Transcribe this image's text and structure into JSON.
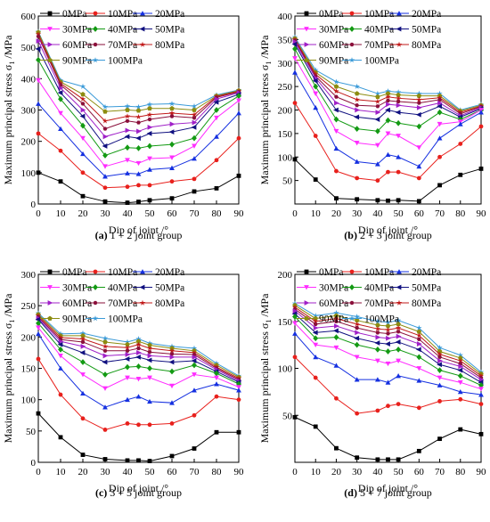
{
  "figure": {
    "caption_labels": [
      "(a)",
      "(b)",
      "(c)",
      "(d)"
    ]
  },
  "series_legend": [
    "0MPa",
    "10MPa",
    "20MPa",
    "30MPa",
    "40MPa",
    "50MPa",
    "60MPa",
    "70MPa",
    "80MPa",
    "90MPa",
    "100MPa"
  ],
  "colors": {
    "series": [
      "#000000",
      "#e8201c",
      "#1530e0",
      "#ff2cff",
      "#139a13",
      "#101080",
      "#a020c8",
      "#8a0f3a",
      "#c01818",
      "#8c8c10",
      "#3a9ad8"
    ]
  },
  "markers": [
    "square",
    "circle",
    "triangle-up",
    "triangle-down",
    "diamond",
    "triangle-left",
    "triangle-right",
    "hexagon",
    "star",
    "pentagon",
    "star"
  ],
  "chart_data": [
    {
      "type": "line",
      "caption_label": "(a)",
      "caption_text": "1 + 2 joint group",
      "xlabel": "Dip of joint /°",
      "ylabel": "Maximum principal stress σ1 /MPa",
      "xlim": [
        0,
        90
      ],
      "ylim": [
        0,
        600
      ],
      "xticks": [
        0,
        10,
        20,
        30,
        40,
        50,
        60,
        70,
        80,
        90
      ],
      "yticks": [
        0,
        100,
        200,
        300,
        400,
        500,
        600
      ],
      "x": [
        0,
        10,
        20,
        30,
        40,
        45,
        50,
        60,
        70,
        80,
        90
      ],
      "series": [
        {
          "name": "0MPa",
          "values": [
            100,
            72,
            25,
            8,
            4,
            7,
            12,
            18,
            40,
            50,
            90
          ]
        },
        {
          "name": "10MPa",
          "values": [
            225,
            170,
            100,
            52,
            55,
            60,
            60,
            72,
            80,
            140,
            210
          ]
        },
        {
          "name": "20MPa",
          "values": [
            320,
            240,
            160,
            88,
            98,
            96,
            110,
            115,
            145,
            215,
            290
          ]
        },
        {
          "name": "30MPa",
          "values": [
            395,
            290,
            210,
            120,
            140,
            130,
            145,
            148,
            185,
            275,
            330
          ]
        },
        {
          "name": "40MPa",
          "values": [
            460,
            335,
            250,
            155,
            180,
            178,
            185,
            190,
            210,
            300,
            345
          ]
        },
        {
          "name": "50MPa",
          "values": [
            495,
            355,
            280,
            185,
            215,
            210,
            225,
            230,
            245,
            325,
            350
          ]
        },
        {
          "name": "60MPa",
          "values": [
            520,
            370,
            300,
            215,
            235,
            232,
            245,
            255,
            260,
            335,
            355
          ]
        },
        {
          "name": "70MPa",
          "values": [
            535,
            380,
            320,
            240,
            265,
            260,
            270,
            280,
            275,
            340,
            358
          ]
        },
        {
          "name": "80MPa",
          "values": [
            542,
            385,
            335,
            265,
            280,
            278,
            285,
            290,
            285,
            343,
            360
          ]
        },
        {
          "name": "90MPa",
          "values": [
            548,
            390,
            350,
            295,
            300,
            298,
            305,
            305,
            300,
            345,
            362
          ]
        },
        {
          "name": "100MPa",
          "values": [
            550,
            395,
            375,
            310,
            312,
            310,
            318,
            320,
            312,
            348,
            364
          ]
        }
      ]
    },
    {
      "type": "line",
      "caption_label": "(b)",
      "caption_text": "2 + 3 joint group",
      "xlabel": "Dip of joint /°",
      "ylabel": "Maximum principal stress σ1 /MPa",
      "xlim": [
        0,
        90
      ],
      "ylim": [
        0,
        400
      ],
      "xticks": [
        0,
        10,
        20,
        30,
        40,
        50,
        60,
        70,
        80,
        90
      ],
      "yticks": [
        50,
        100,
        150,
        200,
        250,
        300,
        350,
        400
      ],
      "x": [
        0,
        10,
        20,
        30,
        40,
        45,
        50,
        60,
        70,
        80,
        90
      ],
      "series": [
        {
          "name": "0MPa",
          "values": [
            95,
            52,
            12,
            10,
            8,
            7,
            8,
            6,
            40,
            62,
            75
          ]
        },
        {
          "name": "10MPa",
          "values": [
            215,
            145,
            70,
            55,
            50,
            68,
            68,
            55,
            100,
            128,
            165
          ]
        },
        {
          "name": "20MPa",
          "values": [
            280,
            205,
            118,
            90,
            85,
            105,
            100,
            80,
            140,
            170,
            195
          ]
        },
        {
          "name": "30MPa",
          "values": [
            310,
            235,
            155,
            130,
            125,
            150,
            145,
            120,
            170,
            175,
            200
          ]
        },
        {
          "name": "40MPa",
          "values": [
            330,
            250,
            180,
            160,
            155,
            178,
            172,
            165,
            195,
            180,
            200
          ]
        },
        {
          "name": "50MPa",
          "values": [
            340,
            262,
            200,
            185,
            180,
            200,
            195,
            190,
            208,
            185,
            203
          ]
        },
        {
          "name": "60MPa",
          "values": [
            345,
            268,
            215,
            200,
            195,
            212,
            210,
            205,
            215,
            188,
            205
          ]
        },
        {
          "name": "70MPa",
          "values": [
            348,
            272,
            228,
            210,
            208,
            220,
            218,
            215,
            222,
            192,
            207
          ]
        },
        {
          "name": "80MPa",
          "values": [
            350,
            276,
            240,
            222,
            218,
            228,
            225,
            222,
            226,
            195,
            208
          ]
        },
        {
          "name": "90MPa",
          "values": [
            352,
            280,
            250,
            235,
            228,
            235,
            232,
            230,
            230,
            198,
            210
          ]
        },
        {
          "name": "100MPa",
          "values": [
            355,
            285,
            260,
            250,
            235,
            240,
            238,
            235,
            235,
            200,
            212
          ]
        }
      ]
    },
    {
      "type": "line",
      "caption_label": "(c)",
      "caption_text": "3 + 5 joint group",
      "xlabel": "Dip of joint /°",
      "ylabel": "Maximum principal stress σ1 /MPa",
      "xlim": [
        0,
        90
      ],
      "ylim": [
        0,
        300
      ],
      "xticks": [
        0,
        10,
        20,
        30,
        40,
        50,
        60,
        70,
        80,
        90
      ],
      "yticks": [
        0,
        50,
        100,
        150,
        200,
        250,
        300
      ],
      "x": [
        0,
        10,
        20,
        30,
        40,
        45,
        50,
        60,
        70,
        80,
        90
      ],
      "series": [
        {
          "name": "0MPa",
          "values": [
            78,
            40,
            12,
            5,
            3,
            3,
            2,
            10,
            22,
            48,
            48
          ]
        },
        {
          "name": "10MPa",
          "values": [
            165,
            108,
            70,
            52,
            62,
            60,
            60,
            62,
            75,
            105,
            100
          ]
        },
        {
          "name": "20MPa",
          "values": [
            205,
            150,
            110,
            88,
            100,
            105,
            97,
            95,
            115,
            125,
            115
          ]
        },
        {
          "name": "30MPa",
          "values": [
            215,
            170,
            140,
            118,
            135,
            133,
            135,
            122,
            140,
            135,
            120
          ]
        },
        {
          "name": "40MPa",
          "values": [
            222,
            180,
            160,
            140,
            152,
            153,
            150,
            145,
            155,
            142,
            125
          ]
        },
        {
          "name": "50MPa",
          "values": [
            228,
            188,
            175,
            160,
            165,
            168,
            163,
            160,
            162,
            145,
            128
          ]
        },
        {
          "name": "60MPa",
          "values": [
            230,
            193,
            185,
            170,
            172,
            175,
            170,
            168,
            168,
            148,
            130
          ]
        },
        {
          "name": "70MPa",
          "values": [
            232,
            196,
            192,
            178,
            178,
            182,
            176,
            173,
            172,
            150,
            132
          ]
        },
        {
          "name": "80MPa",
          "values": [
            234,
            199,
            197,
            185,
            183,
            188,
            182,
            178,
            175,
            152,
            134
          ]
        },
        {
          "name": "90MPa",
          "values": [
            236,
            202,
            202,
            192,
            188,
            193,
            187,
            182,
            178,
            155,
            136
          ]
        },
        {
          "name": "100MPa",
          "values": [
            238,
            205,
            206,
            198,
            192,
            197,
            190,
            185,
            182,
            158,
            138
          ]
        }
      ]
    },
    {
      "type": "line",
      "caption_label": "(d)",
      "caption_text": "5 + 7 joint group",
      "xlabel": "Dip of joint /°",
      "ylabel": "Maximum principal stress σ1 /MPa",
      "xlim": [
        0,
        90
      ],
      "ylim": [
        0,
        200
      ],
      "xticks": [
        0,
        10,
        20,
        30,
        40,
        50,
        60,
        70,
        80,
        90
      ],
      "yticks": [
        50,
        100,
        150,
        200
      ],
      "x": [
        0,
        10,
        20,
        30,
        40,
        45,
        50,
        60,
        70,
        80,
        90
      ],
      "series": [
        {
          "name": "0MPa",
          "values": [
            48,
            38,
            15,
            5,
            3,
            3,
            3,
            12,
            25,
            35,
            30
          ]
        },
        {
          "name": "10MPa",
          "values": [
            112,
            90,
            68,
            52,
            55,
            60,
            62,
            58,
            65,
            67,
            62
          ]
        },
        {
          "name": "20MPa",
          "values": [
            137,
            112,
            103,
            88,
            88,
            85,
            92,
            87,
            82,
            75,
            72
          ]
        },
        {
          "name": "30MPa",
          "values": [
            148,
            125,
            122,
            112,
            108,
            105,
            108,
            100,
            90,
            85,
            78
          ]
        },
        {
          "name": "40MPa",
          "values": [
            155,
            132,
            133,
            125,
            120,
            118,
            120,
            112,
            98,
            92,
            82
          ]
        },
        {
          "name": "50MPa",
          "values": [
            158,
            138,
            140,
            132,
            127,
            126,
            128,
            120,
            104,
            98,
            85
          ]
        },
        {
          "name": "60MPa",
          "values": [
            161,
            143,
            145,
            138,
            133,
            132,
            134,
            126,
            108,
            102,
            88
          ]
        },
        {
          "name": "70MPa",
          "values": [
            163,
            147,
            150,
            143,
            138,
            137,
            139,
            131,
            112,
            105,
            90
          ]
        },
        {
          "name": "80MPa",
          "values": [
            165,
            150,
            153,
            147,
            142,
            141,
            143,
            135,
            115,
            108,
            92
          ]
        },
        {
          "name": "90MPa",
          "values": [
            167,
            153,
            156,
            151,
            146,
            145,
            147,
            139,
            118,
            111,
            94
          ]
        },
        {
          "name": "100MPa",
          "values": [
            169,
            156,
            159,
            155,
            150,
            149,
            151,
            143,
            122,
            114,
            96
          ]
        }
      ]
    }
  ]
}
